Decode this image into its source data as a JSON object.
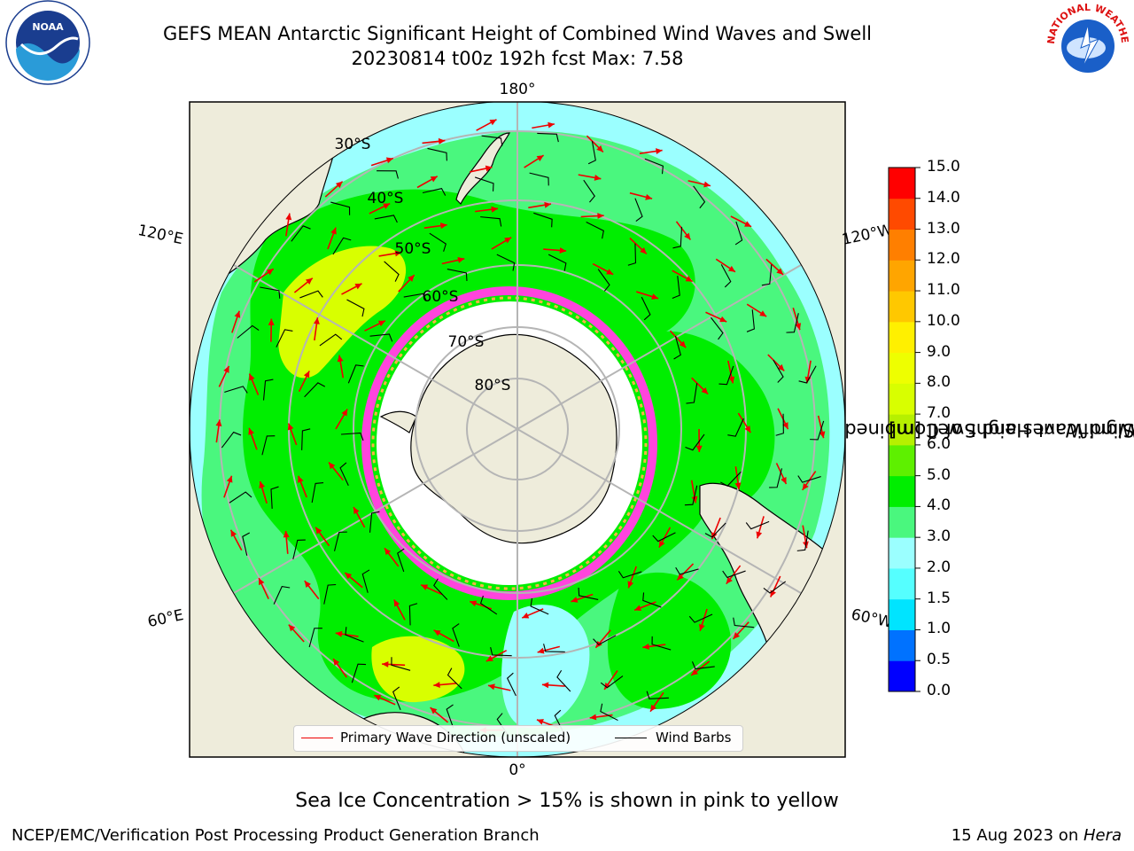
{
  "title": {
    "line1": "GEFS MEAN Antarctic Significant Height of Combined Wind Waves and Swell",
    "line2": "20230814 t00z 192h fcst   Max: 7.58"
  },
  "map": {
    "meridian_labels": [
      "180°",
      "0°",
      "120°E",
      "120°W",
      "60°E",
      "60°W"
    ],
    "parallel_labels": [
      "30°S",
      "40°S",
      "50°S",
      "60°S",
      "70°S",
      "80°S"
    ],
    "colors": {
      "land": "#eeecdb",
      "ocean_low": "#9bffff",
      "ocean_mid": "#4af77e",
      "ocean_high": "#00ee00",
      "ocean_peak": "#d8ff00",
      "sea_ice": "#ff44dd",
      "antarctica": "#ffffff",
      "arrow": "#ee0000",
      "barb": "#000000",
      "grid": "#b5b5b5"
    }
  },
  "legend": {
    "wave_label": "Primary Wave Direction (unscaled)",
    "wind_label": "Wind Barbs"
  },
  "colorbar": {
    "title_line1": "Significant Height of Combined",
    "title_line2": "Wind Waves and Swell [m]",
    "tick_labels": [
      "0.0",
      "0.5",
      "1.0",
      "1.5",
      "2.0",
      "3.0",
      "4.0",
      "5.0",
      "6.0",
      "7.0",
      "8.0",
      "9.0",
      "10.0",
      "11.0",
      "12.0",
      "13.0",
      "14.0",
      "15.0"
    ],
    "colors": [
      "#0000ff",
      "#0072ff",
      "#00e4ff",
      "#55ffff",
      "#9bffff",
      "#4af77e",
      "#00ee00",
      "#5ef000",
      "#b6f000",
      "#d8ff00",
      "#eeff00",
      "#fff000",
      "#ffc800",
      "#ffa500",
      "#ff7f00",
      "#ff4a00",
      "#ff0000"
    ]
  },
  "caption": "Sea Ice Concentration > 15% is shown in pink to yellow",
  "footer": {
    "left": "NCEP/EMC/Verification Post Processing Product Generation Branch",
    "right_date": "15 Aug 2023 on ",
    "right_machine": "Hera"
  },
  "logos": {
    "noaa": "NOAA",
    "nws": "NATIONAL WEATHER SERVICE"
  }
}
